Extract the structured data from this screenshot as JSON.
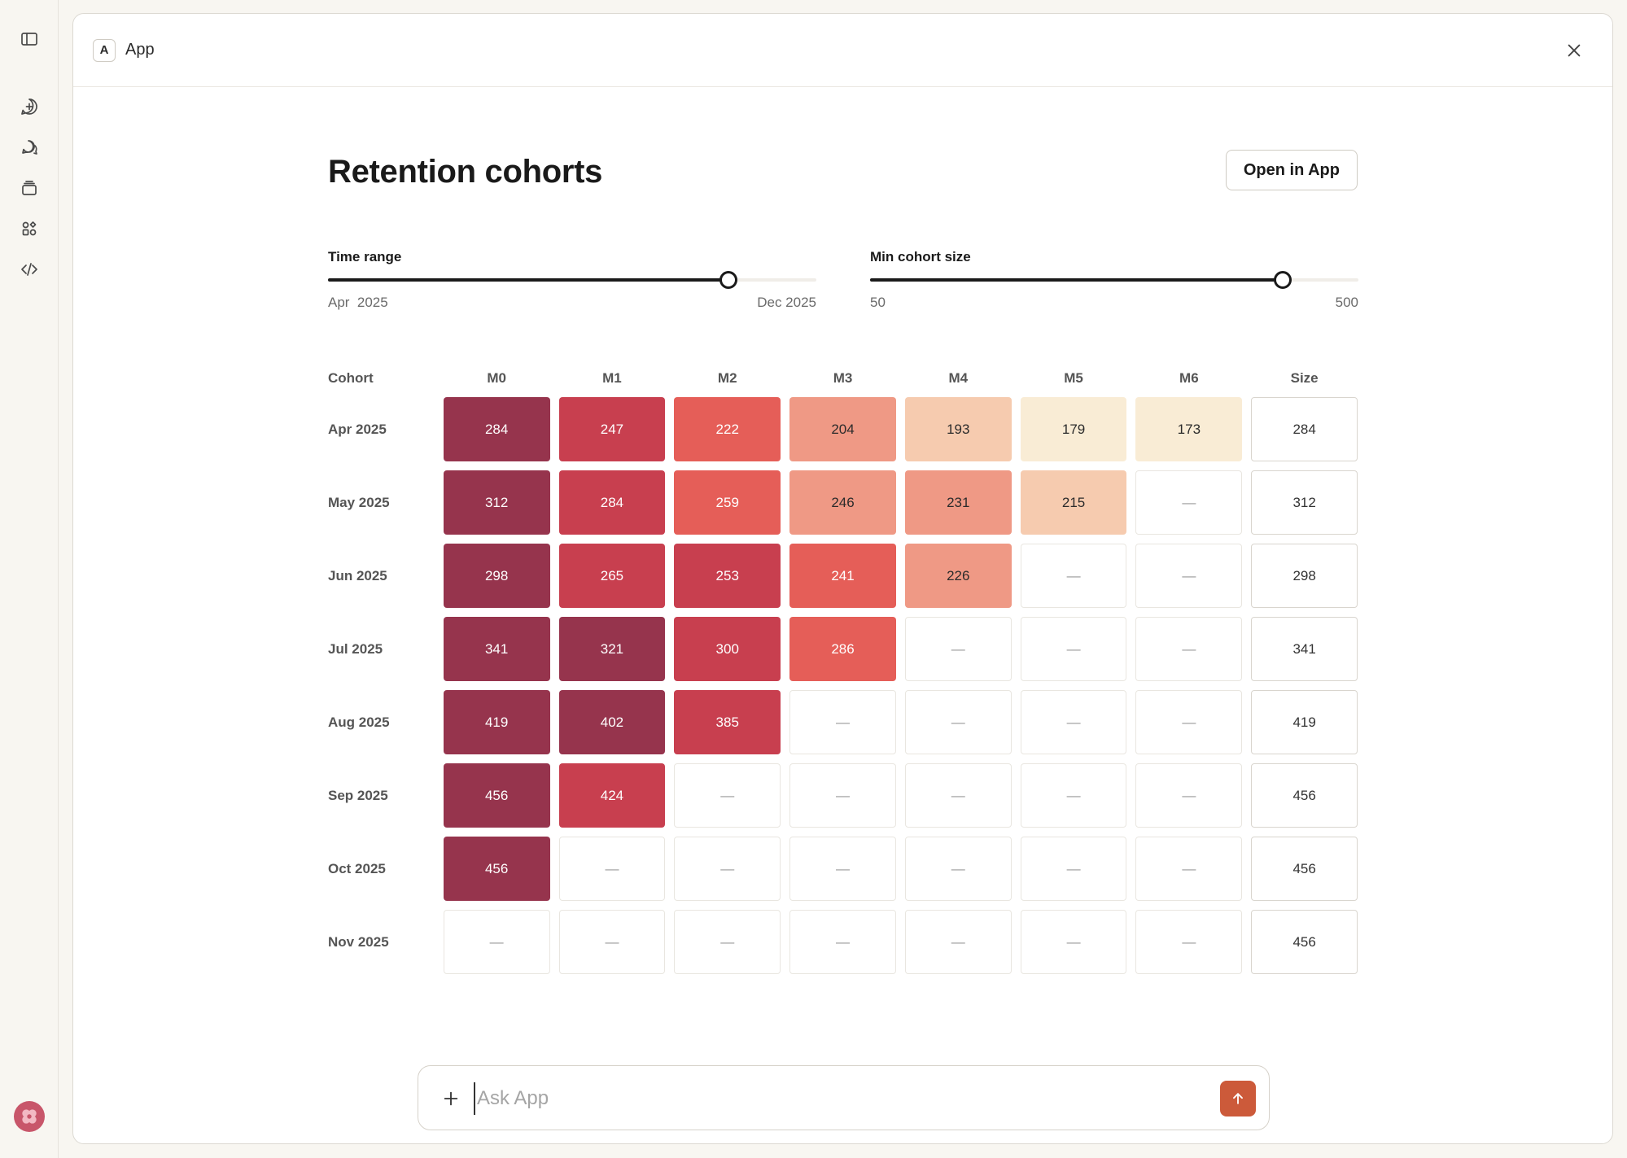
{
  "window": {
    "app_badge": "A",
    "title": "App"
  },
  "page": {
    "title": "Retention cohorts",
    "open_button": "Open in App"
  },
  "sliders": {
    "time_range": {
      "label": "Time range",
      "min_label": "Apr  2025",
      "max_label": "Dec 2025",
      "value_fraction": 0.82
    },
    "min_cohort_size": {
      "label": "Min cohort size",
      "min_label": "50",
      "max_label": "500",
      "value_fraction": 0.845
    }
  },
  "table": {
    "cohort_header": "Cohort",
    "month_headers": [
      "M0",
      "M1",
      "M2",
      "M3",
      "M4",
      "M5",
      "M6"
    ],
    "size_header": "Size",
    "empty_symbol": "—",
    "palette": {
      "darkest": "#96344d",
      "dark": "#c83f4f",
      "mid": "#e55e58",
      "light": "#ef9985",
      "lighter": "#f6cbaf",
      "lightest": "#f9ecd5"
    },
    "rows": [
      {
        "cohort": "Apr 2025",
        "values": [
          "284",
          "247",
          "222",
          "204",
          "193",
          "179",
          "173"
        ],
        "shades": [
          "darkest",
          "dark",
          "mid",
          "light",
          "lighter",
          "lightest",
          "lightest"
        ],
        "size": "284"
      },
      {
        "cohort": "May 2025",
        "values": [
          "312",
          "284",
          "259",
          "246",
          "231",
          "215",
          null
        ],
        "shades": [
          "darkest",
          "dark",
          "mid",
          "light",
          "light",
          "lighter",
          null
        ],
        "size": "312"
      },
      {
        "cohort": "Jun 2025",
        "values": [
          "298",
          "265",
          "253",
          "241",
          "226",
          null,
          null
        ],
        "shades": [
          "darkest",
          "dark",
          "dark",
          "mid",
          "light",
          null,
          null
        ],
        "size": "298"
      },
      {
        "cohort": "Jul 2025",
        "values": [
          "341",
          "321",
          "300",
          "286",
          null,
          null,
          null
        ],
        "shades": [
          "darkest",
          "darkest",
          "dark",
          "mid",
          null,
          null,
          null
        ],
        "size": "341"
      },
      {
        "cohort": "Aug 2025",
        "values": [
          "419",
          "402",
          "385",
          null,
          null,
          null,
          null
        ],
        "shades": [
          "darkest",
          "darkest",
          "dark",
          null,
          null,
          null,
          null
        ],
        "size": "419"
      },
      {
        "cohort": "Sep 2025",
        "values": [
          "456",
          "424",
          null,
          null,
          null,
          null,
          null
        ],
        "shades": [
          "darkest",
          "dark",
          null,
          null,
          null,
          null,
          null
        ],
        "size": "456"
      },
      {
        "cohort": "Oct 2025",
        "values": [
          "456",
          null,
          null,
          null,
          null,
          null,
          null
        ],
        "shades": [
          "darkest",
          null,
          null,
          null,
          null,
          null,
          null
        ],
        "size": "456"
      },
      {
        "cohort": "Nov 2025",
        "values": [
          null,
          null,
          null,
          null,
          null,
          null,
          null
        ],
        "shades": [
          null,
          null,
          null,
          null,
          null,
          null,
          null
        ],
        "size": "456"
      }
    ]
  },
  "chat": {
    "placeholder": "Ask App"
  },
  "icons": {
    "sidebar_toggle": "sidebar-toggle-icon",
    "new_chat": "new-chat-icon",
    "chats": "chats-icon",
    "projects": "projects-icon",
    "artifacts": "artifacts-icon",
    "code": "code-icon",
    "close": "close-icon",
    "plus": "plus-icon",
    "send": "arrow-up-icon"
  }
}
